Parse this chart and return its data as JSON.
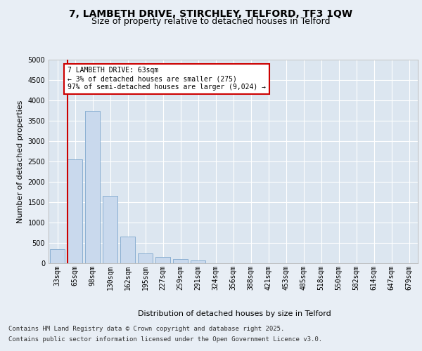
{
  "title_line1": "7, LAMBETH DRIVE, STIRCHLEY, TELFORD, TF3 1QW",
  "title_line2": "Size of property relative to detached houses in Telford",
  "xlabel": "Distribution of detached houses by size in Telford",
  "ylabel": "Number of detached properties",
  "categories": [
    "33sqm",
    "65sqm",
    "98sqm",
    "130sqm",
    "162sqm",
    "195sqm",
    "227sqm",
    "259sqm",
    "291sqm",
    "324sqm",
    "356sqm",
    "388sqm",
    "421sqm",
    "453sqm",
    "485sqm",
    "518sqm",
    "550sqm",
    "582sqm",
    "614sqm",
    "647sqm",
    "679sqm"
  ],
  "values": [
    350,
    2550,
    3750,
    1650,
    650,
    250,
    150,
    100,
    70,
    0,
    0,
    0,
    0,
    0,
    0,
    0,
    0,
    0,
    0,
    0,
    0
  ],
  "bar_color": "#c9d9ed",
  "bar_edge_color": "#7fa8cd",
  "vline_color": "#cc0000",
  "annotation_text": "7 LAMBETH DRIVE: 63sqm\n← 3% of detached houses are smaller (275)\n97% of semi-detached houses are larger (9,024) →",
  "annotation_box_color": "#cc0000",
  "ylim": [
    0,
    5000
  ],
  "yticks": [
    0,
    500,
    1000,
    1500,
    2000,
    2500,
    3000,
    3500,
    4000,
    4500,
    5000
  ],
  "background_color": "#e8eef5",
  "plot_background_color": "#dce6f0",
  "grid_color": "#ffffff",
  "footer_line1": "Contains HM Land Registry data © Crown copyright and database right 2025.",
  "footer_line2": "Contains public sector information licensed under the Open Government Licence v3.0.",
  "title_fontsize": 10,
  "subtitle_fontsize": 9,
  "tick_fontsize": 7,
  "label_fontsize": 8,
  "footer_fontsize": 6.5
}
